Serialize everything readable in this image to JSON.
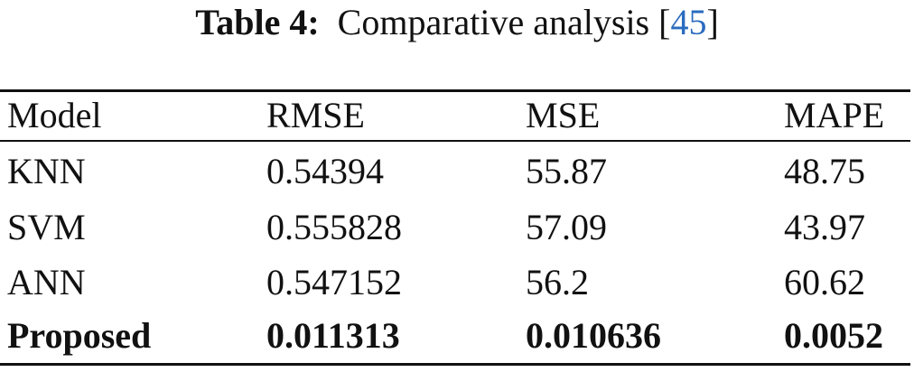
{
  "caption": {
    "label": "Table 4:",
    "text": "Comparative analysis",
    "ref_open": "[",
    "ref": "45",
    "ref_close": "]"
  },
  "table": {
    "header": [
      "Model",
      "RMSE",
      "MSE",
      "MAPE"
    ],
    "rows": [
      [
        "KNN",
        "0.54394",
        "55.87",
        "48.75"
      ],
      [
        "SVM",
        "0.555828",
        "57.09",
        "43.97"
      ],
      [
        "ANN",
        "0.547152",
        "56.2",
        "60.62"
      ],
      [
        "Proposed",
        "0.011313",
        "0.010636",
        "0.0052"
      ]
    ],
    "bold_rows": [
      3
    ]
  }
}
